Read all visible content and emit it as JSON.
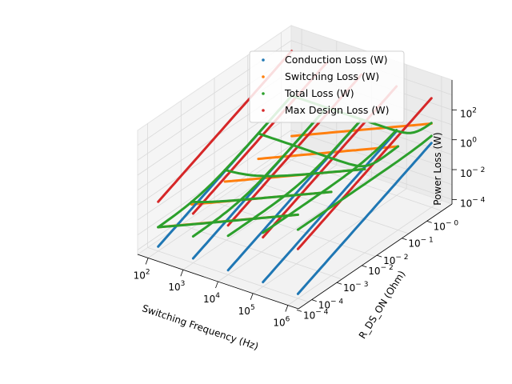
{
  "chart_data": {
    "type": "line",
    "projection": "3d",
    "xlabel": "Switching Frequency (Hz)",
    "ylabel": "R_DS_ON (Ohm)",
    "zlabel": "Power Loss (W)",
    "x_scale": "log",
    "y_scale": "log",
    "z_scale": "log",
    "xlim": [
      50,
      2000000
    ],
    "ylim": [
      5e-05,
      2
    ],
    "zlim": [
      5e-05,
      10000
    ],
    "x_ticks": [
      "10^2",
      "10^3",
      "10^4",
      "10^5",
      "10^6"
    ],
    "y_ticks": [
      "10^-4",
      "10^-4",
      "10^-3",
      "10^-2",
      "10^-2",
      "10^-1",
      "10^-0"
    ],
    "z_ticks": [
      "10^-4",
      "10^-2",
      "10^0",
      "10^2"
    ],
    "grid": true,
    "legend_position": "upper-right",
    "series_order": [
      "Conduction Loss (W)",
      "Switching Loss (W)",
      "Total Loss (W)",
      "Max Design Loss (W)"
    ],
    "colors": {
      "Conduction Loss (W)": "#1f77b4",
      "Switching Loss (W)": "#ff7f0e",
      "Total Loss (W)": "#2ca02c",
      "Max Design Loss (W)": "#d62728"
    },
    "curves": [
      {
        "series": "Switching Loss (W)",
        "fixed": "y",
        "fixed_value": 0.0001,
        "x": [
          100,
          1000000
        ],
        "y": [
          0.0001,
          0.0001
        ],
        "z": [
          0.002,
          20
        ]
      },
      {
        "series": "Switching Loss (W)",
        "fixed": "y",
        "fixed_value": 0.001,
        "x": [
          100,
          1000000
        ],
        "y": [
          0.001,
          0.001
        ],
        "z": [
          0.002,
          20
        ]
      },
      {
        "series": "Switching Loss (W)",
        "fixed": "y",
        "fixed_value": 0.01,
        "x": [
          100,
          1000000
        ],
        "y": [
          0.01,
          0.01
        ],
        "z": [
          0.002,
          20
        ]
      },
      {
        "series": "Switching Loss (W)",
        "fixed": "y",
        "fixed_value": 0.1,
        "x": [
          100,
          1000000
        ],
        "y": [
          0.1,
          0.1
        ],
        "z": [
          0.002,
          20
        ]
      },
      {
        "series": "Switching Loss (W)",
        "fixed": "y",
        "fixed_value": 1,
        "x": [
          100,
          1000000
        ],
        "y": [
          1,
          1
        ],
        "z": [
          0.002,
          20
        ]
      },
      {
        "series": "Conduction Loss (W)",
        "fixed": "x",
        "fixed_value": 100,
        "x": [
          100,
          100
        ],
        "y": [
          0.0001,
          1
        ],
        "z": [
          0.0001,
          1
        ]
      },
      {
        "series": "Conduction Loss (W)",
        "fixed": "x",
        "fixed_value": 1000,
        "x": [
          1000,
          1000
        ],
        "y": [
          0.0001,
          1
        ],
        "z": [
          0.0001,
          1
        ]
      },
      {
        "series": "Conduction Loss (W)",
        "fixed": "x",
        "fixed_value": 10000,
        "x": [
          10000,
          10000
        ],
        "y": [
          0.0001,
          1
        ],
        "z": [
          0.0001,
          1
        ]
      },
      {
        "series": "Conduction Loss (W)",
        "fixed": "x",
        "fixed_value": 100000,
        "x": [
          100000,
          100000
        ],
        "y": [
          0.0001,
          1
        ],
        "z": [
          0.0001,
          1
        ]
      },
      {
        "series": "Conduction Loss (W)",
        "fixed": "x",
        "fixed_value": 1000000,
        "x": [
          1000000,
          1000000
        ],
        "y": [
          0.0001,
          1
        ],
        "z": [
          0.0001,
          1
        ]
      },
      {
        "series": "Max Design Loss (W)",
        "fixed": "x",
        "fixed_value": 100,
        "x": [
          100,
          100
        ],
        "y": [
          0.0001,
          1
        ],
        "z": [
          0.1,
          1000
        ]
      },
      {
        "series": "Max Design Loss (W)",
        "fixed": "x",
        "fixed_value": 1000,
        "x": [
          1000,
          1000
        ],
        "y": [
          0.0001,
          1
        ],
        "z": [
          0.1,
          1000
        ]
      },
      {
        "series": "Max Design Loss (W)",
        "fixed": "x",
        "fixed_value": 10000,
        "x": [
          10000,
          10000
        ],
        "y": [
          0.0001,
          1
        ],
        "z": [
          0.1,
          1000
        ]
      },
      {
        "series": "Max Design Loss (W)",
        "fixed": "x",
        "fixed_value": 100000,
        "x": [
          100000,
          100000
        ],
        "y": [
          0.0001,
          1
        ],
        "z": [
          0.1,
          1000
        ]
      },
      {
        "series": "Max Design Loss (W)",
        "fixed": "x",
        "fixed_value": 1000000,
        "x": [
          1000000,
          1000000
        ],
        "y": [
          0.0001,
          1
        ],
        "z": [
          0.1,
          1000
        ]
      },
      {
        "series": "Total Loss (W)",
        "fixed": "y",
        "fixed_value": 0.0001,
        "x": [
          100,
          1000000
        ],
        "y": [
          0.0001,
          0.0001
        ],
        "z": [
          0.002,
          20
        ]
      },
      {
        "series": "Total Loss (W)",
        "fixed": "y",
        "fixed_value": 0.001,
        "x": [
          100,
          1000000
        ],
        "y": [
          0.001,
          0.001
        ],
        "z": [
          0.003,
          20
        ]
      },
      {
        "series": "Total Loss (W)",
        "fixed": "y",
        "fixed_value": 0.01,
        "x": [
          100,
          1000000
        ],
        "y": [
          0.01,
          0.01
        ],
        "z": [
          0.012,
          20
        ]
      },
      {
        "series": "Total Loss (W)",
        "fixed": "y",
        "fixed_value": 0.1,
        "x": [
          100,
          1000000
        ],
        "y": [
          0.1,
          0.1
        ],
        "z": [
          0.1,
          20
        ]
      },
      {
        "series": "Total Loss (W)",
        "fixed": "y",
        "fixed_value": 1,
        "x": [
          100,
          1000000
        ],
        "y": [
          1,
          1
        ],
        "z": [
          1,
          21
        ]
      },
      {
        "series": "Total Loss (W)",
        "fixed": "x",
        "fixed_value": 100,
        "x": [
          100,
          100
        ],
        "y": [
          0.0001,
          1
        ],
        "z": [
          0.002,
          1
        ]
      },
      {
        "series": "Total Loss (W)",
        "fixed": "x",
        "fixed_value": 1000,
        "x": [
          1000,
          1000
        ],
        "y": [
          0.0001,
          1
        ],
        "z": [
          0.003,
          1
        ]
      },
      {
        "series": "Total Loss (W)",
        "fixed": "x",
        "fixed_value": 10000,
        "x": [
          10000,
          10000
        ],
        "y": [
          0.0001,
          1
        ],
        "z": [
          0.02,
          1.2
        ]
      },
      {
        "series": "Total Loss (W)",
        "fixed": "x",
        "fixed_value": 100000,
        "x": [
          100000,
          100000
        ],
        "y": [
          0.0001,
          1
        ],
        "z": [
          0.2,
          3
        ]
      },
      {
        "series": "Total Loss (W)",
        "fixed": "x",
        "fixed_value": 1000000,
        "x": [
          1000000,
          1000000
        ],
        "y": [
          0.0001,
          1
        ],
        "z": [
          2,
          21
        ]
      }
    ]
  }
}
